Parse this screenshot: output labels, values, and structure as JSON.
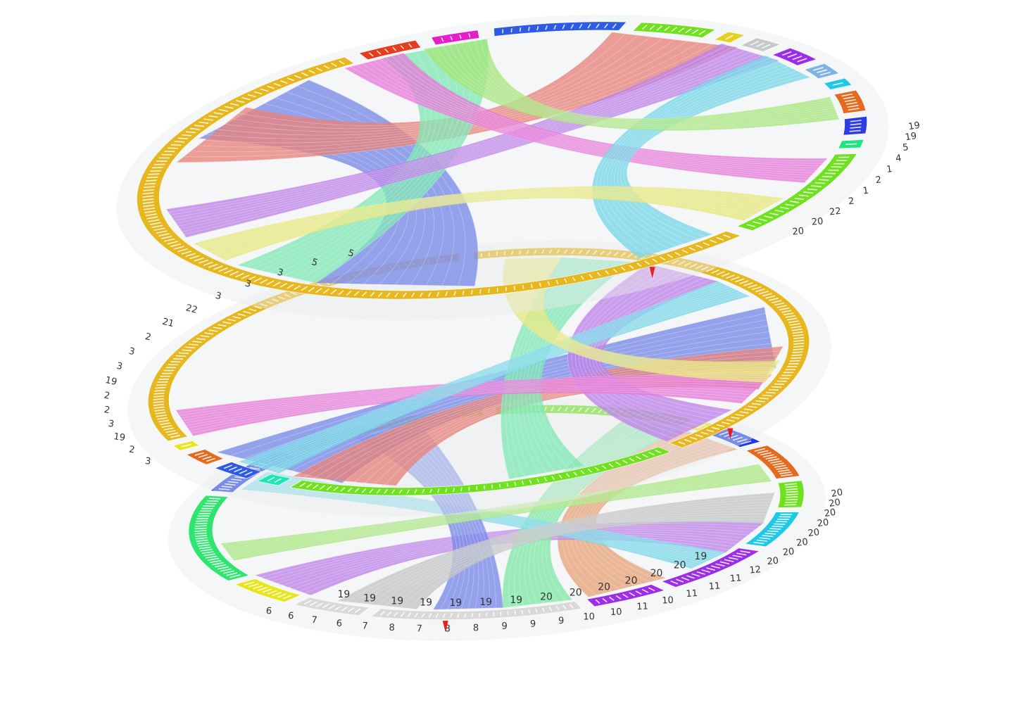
{
  "figure": {
    "kind": "stacked-3d-circos-plots",
    "layer_count": 3,
    "rings": [
      {
        "id": "top",
        "segments": [
          {
            "color": "#2E5BE6",
            "span": 12
          },
          {
            "color": "#6FE11E",
            "span": 8
          },
          {
            "color": "#E6D21E",
            "span": 3
          },
          {
            "color": "#C8C8C8",
            "span": 4
          },
          {
            "color": "#9B2EE6",
            "span": 5
          },
          {
            "color": "#7FB3E6",
            "span": 4
          },
          {
            "color": "#1EC8E6",
            "span": 3
          },
          {
            "color": "#E66A1E",
            "span": 6
          },
          {
            "color": "#2E3CE6",
            "span": 5
          },
          {
            "color": "#1EE67F",
            "span": 3
          },
          {
            "color": "#6FE11E",
            "span": 18
          },
          {
            "color": "#E6B71E",
            "span": 100
          },
          {
            "color": "#E63C1E",
            "span": 6
          },
          {
            "color": "#E61EC8",
            "span": 5
          }
        ]
      },
      {
        "id": "middle",
        "segments": [
          {
            "color": "#E6B71E",
            "span": 80
          },
          {
            "color": "#6FE11E",
            "span": 40
          },
          {
            "color": "#1EE6B4",
            "span": 4
          },
          {
            "color": "#2E5BE6",
            "span": 6
          },
          {
            "color": "#E66A1E",
            "span": 5
          },
          {
            "color": "#E6E61E",
            "span": 3
          },
          {
            "color": "#E6B71E",
            "span": 60
          }
        ]
      },
      {
        "id": "bottom",
        "segments": [
          {
            "color": "#6FE11E",
            "span": 20
          },
          {
            "color": "#E6E61E",
            "span": 3
          },
          {
            "color": "#1E3CE6",
            "span": 6
          },
          {
            "color": "#E66A1E",
            "span": 10
          },
          {
            "color": "#6FE11E",
            "span": 8
          },
          {
            "color": "#1EC8E6",
            "span": 10
          },
          {
            "color": "#9B2EE6",
            "span": 12
          },
          {
            "color": "#9B2EE6",
            "span": 8
          },
          {
            "color": "#D9D9D9",
            "span": 20
          },
          {
            "color": "#D9D9D9",
            "span": 8
          },
          {
            "color": "#E6E61E",
            "span": 8
          },
          {
            "color": "#2EE66F",
            "span": 24
          },
          {
            "color": "#1E3CE6",
            "span": 12
          },
          {
            "color": "#6FE11E",
            "span": 20
          }
        ]
      }
    ],
    "links": [
      {
        "layer": "top",
        "color": "#1E3CE6",
        "from": 0.52,
        "to": 0.83,
        "width": 0.08
      },
      {
        "layer": "top",
        "color": "#E62E1E",
        "from": 0.8,
        "to": 0.06,
        "width": 0.07
      },
      {
        "layer": "top",
        "color": "#2EE68A",
        "from": 0.6,
        "to": 0.95,
        "width": 0.05
      },
      {
        "layer": "top",
        "color": "#9B2EE6",
        "from": 0.7,
        "to": 0.12,
        "width": 0.04
      },
      {
        "layer": "top",
        "color": "#E61EC8",
        "from": 0.93,
        "to": 0.3,
        "width": 0.03
      },
      {
        "layer": "top",
        "color": "#1EC8E6",
        "from": 0.4,
        "to": 0.15,
        "width": 0.04
      },
      {
        "layer": "top",
        "color": "#6FE11E",
        "from": 0.22,
        "to": 0.97,
        "width": 0.03
      },
      {
        "layer": "top",
        "color": "#E6E61E",
        "from": 0.35,
        "to": 0.66,
        "width": 0.03
      },
      {
        "layer": "middle",
        "color": "#1E3CE6",
        "from": 0.58,
        "to": 0.2,
        "width": 0.09
      },
      {
        "layer": "middle",
        "color": "#E62E1E",
        "from": 0.26,
        "to": 0.55,
        "width": 0.06
      },
      {
        "layer": "middle",
        "color": "#9B2EE6",
        "from": 0.1,
        "to": 0.35,
        "width": 0.05
      },
      {
        "layer": "middle",
        "color": "#2EE68A",
        "from": 0.05,
        "to": 0.45,
        "width": 0.04
      },
      {
        "layer": "middle",
        "color": "#E61EC8",
        "from": 0.3,
        "to": 0.7,
        "width": 0.04
      },
      {
        "layer": "middle",
        "color": "#1EC8E6",
        "from": 0.15,
        "to": 0.62,
        "width": 0.03
      },
      {
        "layer": "middle",
        "color": "#E6E61E",
        "from": 0.02,
        "to": 0.28,
        "width": 0.03
      },
      {
        "layer": "bottom",
        "color": "#E66A1E",
        "from": 0.4,
        "to": 0.12,
        "width": 0.05
      },
      {
        "layer": "bottom",
        "color": "#9B2EE6",
        "from": 0.3,
        "to": 0.62,
        "width": 0.05
      },
      {
        "layer": "bottom",
        "color": "#2EE66F",
        "from": 0.08,
        "to": 0.46,
        "width": 0.04
      },
      {
        "layer": "bottom",
        "color": "#1EC8E6",
        "from": 0.35,
        "to": 0.82,
        "width": 0.03
      },
      {
        "layer": "bottom",
        "color": "#1E3CE6",
        "from": 0.5,
        "to": 0.92,
        "width": 0.04
      },
      {
        "layer": "bottom",
        "color": "#6FE11E",
        "from": 0.2,
        "to": 0.7,
        "width": 0.03
      },
      {
        "layer": "bottom",
        "color": "#A6A6A6",
        "from": 0.25,
        "to": 0.55,
        "width": 0.05
      }
    ],
    "bottom_labels": [
      "6",
      "6",
      "7",
      "6",
      "7",
      "8",
      "7",
      "8",
      "8",
      "9",
      "9",
      "9",
      "10",
      "10",
      "11",
      "10",
      "11",
      "11",
      "11",
      "12",
      "20",
      "20",
      "20",
      "20",
      "20",
      "20",
      "20",
      "20"
    ],
    "left_labels": [
      "5",
      "5",
      "3",
      "3",
      "3",
      "22",
      "21",
      "2",
      "3",
      "3",
      "19",
      "2",
      "2",
      "3",
      "19",
      "2",
      "3"
    ],
    "right_labels": [
      "19",
      "19",
      "5",
      "4",
      "1",
      "2",
      "1",
      "2",
      "22",
      "20",
      "20"
    ],
    "inner_labels": [
      "19",
      "19",
      "19",
      "19",
      "19",
      "19",
      "19",
      "20",
      "20",
      "20",
      "20",
      "20",
      "20",
      "19"
    ],
    "markers": [
      {
        "color": "#E61E1E"
      },
      {
        "color": "#E61E1E"
      },
      {
        "color": "#E61E1E"
      }
    ]
  }
}
